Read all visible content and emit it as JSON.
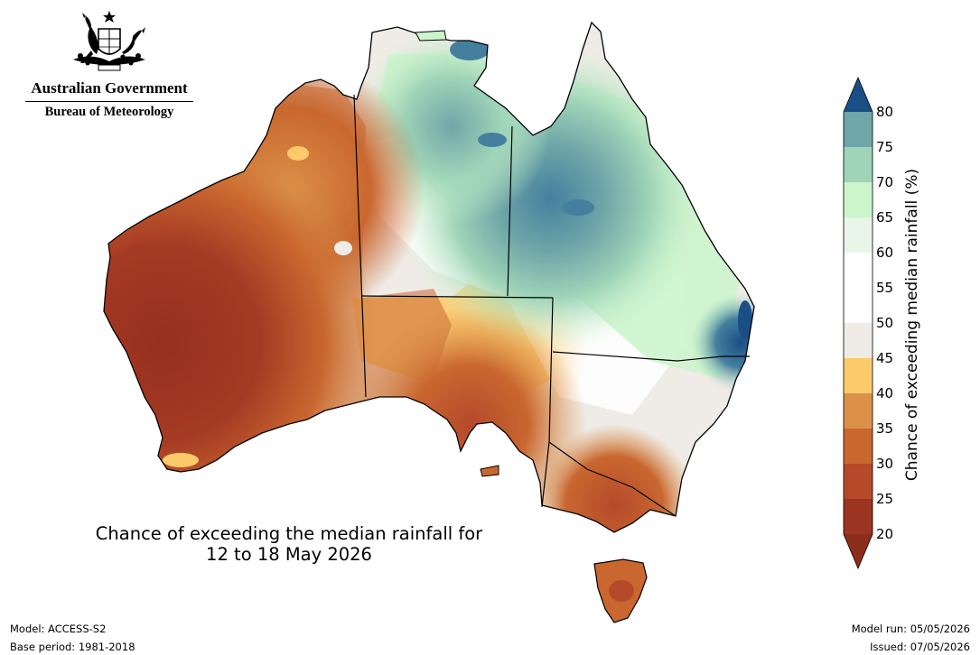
{
  "branding": {
    "government": "Australian Government",
    "bureau": "Bureau of Meteorology",
    "crest_icon": "coat-of-arms-icon"
  },
  "map": {
    "title_line1": "Chance of exceeding the median rainfall for",
    "title_line2": "12 to 18 May 2026",
    "subject": "Australia"
  },
  "colorbar": {
    "label": "Chance of exceeding median rainfall (%)",
    "ticks": [
      "20",
      "25",
      "30",
      "35",
      "40",
      "45",
      "50",
      "55",
      "60",
      "65",
      "70",
      "75",
      "80"
    ],
    "colors": [
      "#9c3422",
      "#b5492a",
      "#c9672f",
      "#db9147",
      "#fdca6b",
      "#efebe6",
      "#ffffff",
      "#ffffff",
      "#e8f5e8",
      "#ccf5cc",
      "#9fd4b8",
      "#6fa6a8",
      "#447f9e"
    ],
    "under_color": "#8c2d1c",
    "over_color": "#1a4f86"
  },
  "footer": {
    "model": "Model: ACCESS-S2",
    "base_period": "Base period: 1981-2018",
    "model_run": "Model run: 05/05/2026",
    "issued": "Issued: 07/05/2026"
  }
}
